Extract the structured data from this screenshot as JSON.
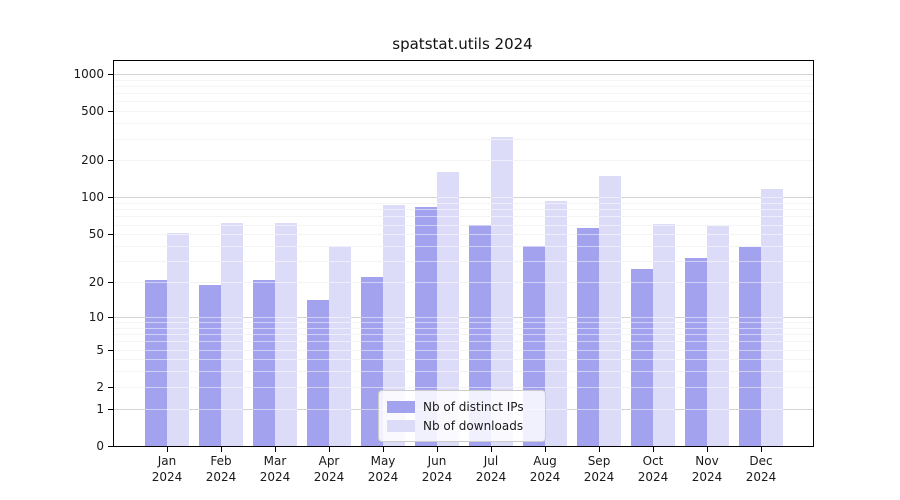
{
  "title": "spatstat.utils 2024",
  "colors": {
    "distinct_ips": "#a2a2ee",
    "downloads": "#dcdcf8",
    "grid_minor": "#e8e8e8",
    "grid_major": "#a9a9a9",
    "spine": "#000000",
    "text": "#1a1a1a"
  },
  "chart_data": {
    "type": "bar",
    "title": "spatstat.utils 2024",
    "xlabel": "",
    "ylabel": "",
    "yscale": "log1p",
    "grid": true,
    "categories": [
      "Jan",
      "Feb",
      "Mar",
      "Apr",
      "May",
      "Jun",
      "Jul",
      "Aug",
      "Sep",
      "Oct",
      "Nov",
      "Dec"
    ],
    "category_year": "2024",
    "yticks": [
      0,
      1,
      2,
      5,
      10,
      20,
      50,
      100,
      200,
      500,
      1000
    ],
    "ylim": [
      0,
      1200
    ],
    "legend_position": "lower center",
    "series": [
      {
        "name": "Nb of distinct IPs",
        "color": "#a2a2ee",
        "values": [
          21,
          19,
          21,
          14,
          22,
          84,
          60,
          40,
          56,
          26,
          32,
          39
        ]
      },
      {
        "name": "Nb of downloads",
        "color": "#dcdcf8",
        "values": [
          51,
          62,
          62,
          40,
          87,
          160,
          310,
          94,
          150,
          61,
          59,
          118
        ]
      }
    ]
  }
}
